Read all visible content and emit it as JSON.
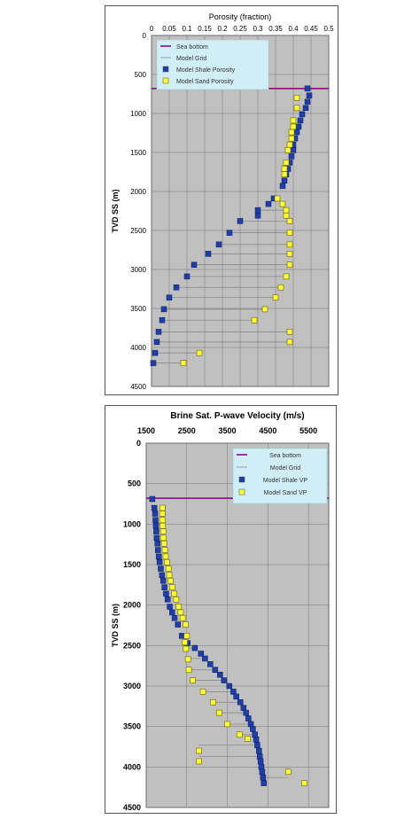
{
  "chart_data": [
    {
      "type": "scatter",
      "title": "Porosity (fraction)",
      "xlabel": "",
      "ylabel": "TVD SS (m)",
      "xlim": [
        0,
        0.5
      ],
      "ylim": [
        4500,
        0
      ],
      "x_axis_position": "top",
      "x_ticks": [
        "0",
        "0.05",
        "0.1",
        "0.15",
        "0.2",
        "0.25",
        "0.3",
        "0.35",
        "0.4",
        "0.45",
        "0.5"
      ],
      "y_ticks": [
        "0",
        "500",
        "1000",
        "1500",
        "2000",
        "2500",
        "3000",
        "3500",
        "4000",
        "4500"
      ],
      "grid": true,
      "plot_background": "#c0c0c0",
      "legend_position": "top-left",
      "sea_bottom_depth": 680,
      "series": [
        {
          "name": "Sea bottom",
          "kind": "line",
          "color": "#800080"
        },
        {
          "name": "Model Grid",
          "kind": "line",
          "color": "#808080",
          "depths": [
            2240,
            2380,
            2530,
            2680,
            2800,
            2940,
            3090,
            3230,
            3360,
            3510,
            3650,
            3800,
            3930,
            4070,
            4200
          ]
        },
        {
          "name": "Model Shale Porosity",
          "kind": "marker",
          "color": "#1f3ea8",
          "points": [
            [
              0.44,
              680
            ],
            [
              0.445,
              770
            ],
            [
              0.44,
              850
            ],
            [
              0.435,
              930
            ],
            [
              0.425,
              1010
            ],
            [
              0.42,
              1090
            ],
            [
              0.415,
              1170
            ],
            [
              0.41,
              1240
            ],
            [
              0.405,
              1320
            ],
            [
              0.4,
              1400
            ],
            [
              0.4,
              1470
            ],
            [
              0.395,
              1550
            ],
            [
              0.39,
              1630
            ],
            [
              0.385,
              1710
            ],
            [
              0.38,
              1780
            ],
            [
              0.375,
              1860
            ],
            [
              0.37,
              1930
            ],
            [
              0.345,
              2090
            ],
            [
              0.33,
              2160
            ],
            [
              0.3,
              2240
            ],
            [
              0.3,
              2310
            ],
            [
              0.25,
              2380
            ],
            [
              0.22,
              2530
            ],
            [
              0.19,
              2680
            ],
            [
              0.16,
              2800
            ],
            [
              0.12,
              2940
            ],
            [
              0.1,
              3090
            ],
            [
              0.07,
              3230
            ],
            [
              0.05,
              3360
            ],
            [
              0.035,
              3510
            ],
            [
              0.03,
              3650
            ],
            [
              0.02,
              3800
            ],
            [
              0.015,
              3930
            ],
            [
              0.01,
              4070
            ],
            [
              0.005,
              4200
            ]
          ]
        },
        {
          "name": "Model Sand Porosity",
          "kind": "marker",
          "color": "#ffff33",
          "points": [
            [
              0.41,
              800
            ],
            [
              0.41,
              930
            ],
            [
              0.4,
              1090
            ],
            [
              0.4,
              1170
            ],
            [
              0.395,
              1240
            ],
            [
              0.395,
              1320
            ],
            [
              0.39,
              1400
            ],
            [
              0.385,
              1470
            ],
            [
              0.38,
              1630
            ],
            [
              0.375,
              1710
            ],
            [
              0.375,
              1780
            ],
            [
              0.355,
              2090
            ],
            [
              0.37,
              2160
            ],
            [
              0.38,
              2240
            ],
            [
              0.38,
              2310
            ],
            [
              0.39,
              2380
            ],
            [
              0.39,
              2530
            ],
            [
              0.39,
              2680
            ],
            [
              0.39,
              2800
            ],
            [
              0.39,
              2940
            ],
            [
              0.38,
              3090
            ],
            [
              0.365,
              3230
            ],
            [
              0.35,
              3360
            ],
            [
              0.32,
              3510
            ],
            [
              0.29,
              3650
            ],
            [
              0.39,
              3800
            ],
            [
              0.39,
              3930
            ],
            [
              0.135,
              4070
            ],
            [
              0.09,
              4200
            ]
          ]
        }
      ]
    },
    {
      "type": "scatter",
      "title": "Brine Sat. P-wave Velocity (m/s)",
      "xlabel": "",
      "ylabel": "TVD SS (m)",
      "xlim": [
        1500,
        6000
      ],
      "ylim": [
        4500,
        0
      ],
      "x_axis_position": "top",
      "x_ticks": [
        "1500",
        "2500",
        "3500",
        "4500",
        "5500"
      ],
      "y_ticks": [
        "0",
        "500",
        "1000",
        "1500",
        "2000",
        "2500",
        "3000",
        "3500",
        "4000",
        "4500"
      ],
      "grid": true,
      "plot_background": "#c0c0c0",
      "legend_position": "top-right",
      "sea_bottom_depth": 680,
      "series": [
        {
          "name": "Sea bottom",
          "kind": "line",
          "color": "#800080"
        },
        {
          "name": "Model Grid",
          "kind": "line",
          "color": "#808080",
          "depths": [
            2530,
            2660,
            2800,
            2930,
            3070,
            3200,
            3330,
            3470,
            3600,
            3730,
            3870,
            4000,
            4130
          ]
        },
        {
          "name": "Model Shale VP",
          "kind": "marker",
          "color": "#1f3ea8",
          "points": [
            [
              1650,
              690
            ],
            [
              1700,
              800
            ],
            [
              1720,
              870
            ],
            [
              1730,
              950
            ],
            [
              1740,
              1020
            ],
            [
              1750,
              1090
            ],
            [
              1760,
              1170
            ],
            [
              1780,
              1240
            ],
            [
              1790,
              1320
            ],
            [
              1810,
              1400
            ],
            [
              1830,
              1470
            ],
            [
              1860,
              1550
            ],
            [
              1890,
              1630
            ],
            [
              1920,
              1700
            ],
            [
              1950,
              1780
            ],
            [
              1990,
              1860
            ],
            [
              2030,
              1930
            ],
            [
              2080,
              2020
            ],
            [
              2140,
              2090
            ],
            [
              2200,
              2160
            ],
            [
              2280,
              2240
            ],
            [
              2380,
              2380
            ],
            [
              2520,
              2470
            ],
            [
              2700,
              2530
            ],
            [
              2850,
              2600
            ],
            [
              2950,
              2660
            ],
            [
              3080,
              2730
            ],
            [
              3200,
              2800
            ],
            [
              3320,
              2860
            ],
            [
              3420,
              2930
            ],
            [
              3550,
              3000
            ],
            [
              3650,
              3070
            ],
            [
              3720,
              3130
            ],
            [
              3820,
              3200
            ],
            [
              3900,
              3270
            ],
            [
              3960,
              3330
            ],
            [
              4020,
              3400
            ],
            [
              4080,
              3470
            ],
            [
              4130,
              3530
            ],
            [
              4180,
              3600
            ],
            [
              4210,
              3660
            ],
            [
              4240,
              3730
            ],
            [
              4280,
              3800
            ],
            [
              4300,
              3870
            ],
            [
              4320,
              3930
            ],
            [
              4340,
              4000
            ],
            [
              4360,
              4060
            ],
            [
              4380,
              4130
            ],
            [
              4400,
              4200
            ]
          ]
        },
        {
          "name": "Model Sand VP",
          "kind": "marker",
          "color": "#ffff33",
          "points": [
            [
              1900,
              800
            ],
            [
              1900,
              870
            ],
            [
              1900,
              950
            ],
            [
              1910,
              1020
            ],
            [
              1920,
              1090
            ],
            [
              1920,
              1170
            ],
            [
              1940,
              1240
            ],
            [
              1960,
              1320
            ],
            [
              1980,
              1400
            ],
            [
              2010,
              1470
            ],
            [
              2050,
              1550
            ],
            [
              2070,
              1630
            ],
            [
              2100,
              1700
            ],
            [
              2140,
              1780
            ],
            [
              2190,
              1860
            ],
            [
              2240,
              1930
            ],
            [
              2300,
              2020
            ],
            [
              2350,
              2090
            ],
            [
              2400,
              2160
            ],
            [
              2470,
              2240
            ],
            [
              2500,
              2380
            ],
            [
              2450,
              2460
            ],
            [
              2480,
              2540
            ],
            [
              2530,
              2670
            ],
            [
              2550,
              2800
            ],
            [
              2650,
              2930
            ],
            [
              2900,
              3070
            ],
            [
              3150,
              3200
            ],
            [
              3300,
              3330
            ],
            [
              3500,
              3470
            ],
            [
              3800,
              3600
            ],
            [
              4000,
              3650
            ],
            [
              2800,
              3800
            ],
            [
              2800,
              3930
            ],
            [
              5000,
              4060
            ],
            [
              5400,
              4200
            ]
          ]
        }
      ]
    }
  ]
}
